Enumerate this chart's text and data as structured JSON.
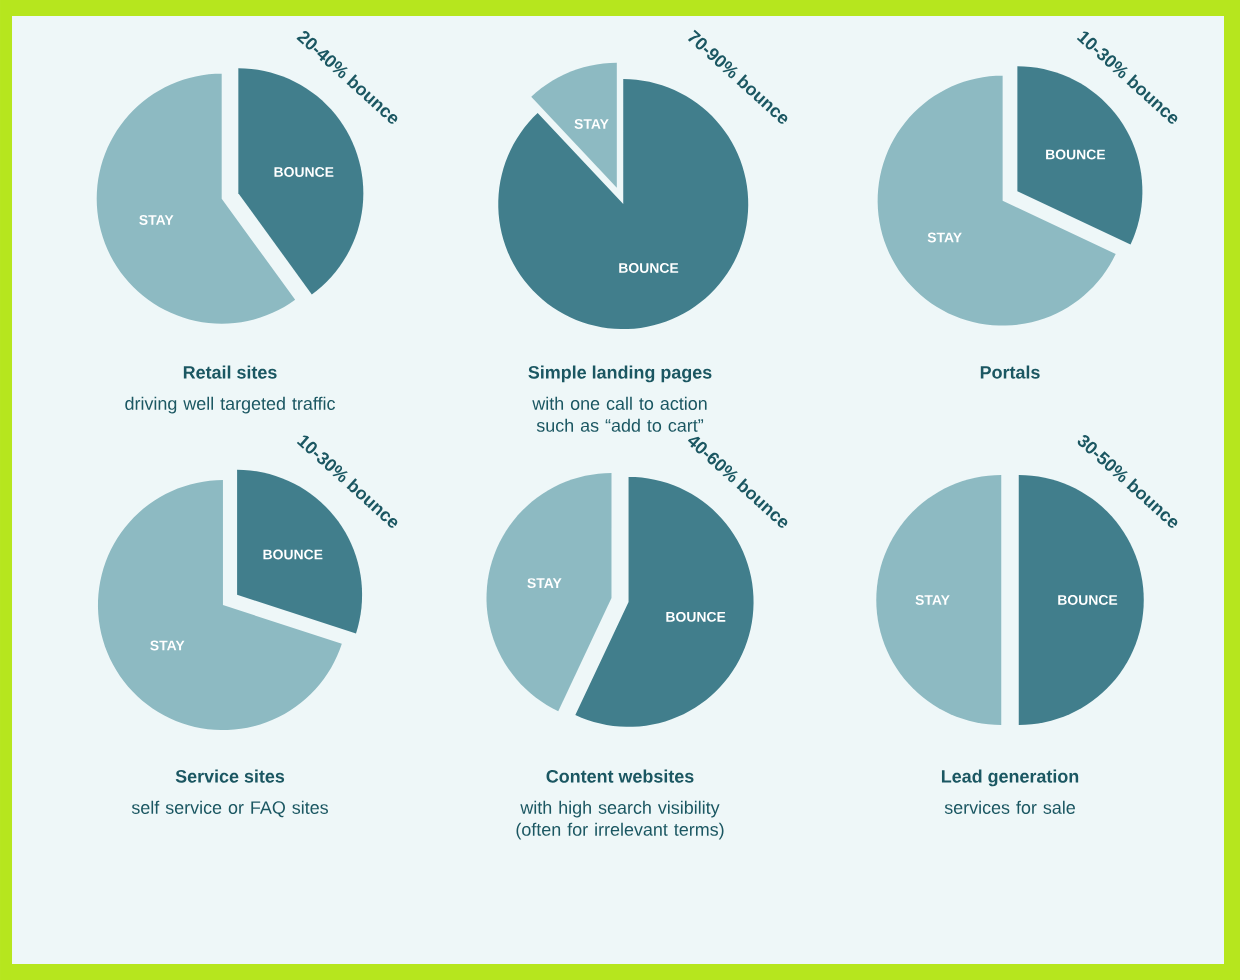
{
  "chart_data": [
    {
      "type": "pie",
      "title": "Retail sites",
      "subtitle": "driving well targeted traffic",
      "categories": [
        "BOUNCE",
        "STAY"
      ],
      "values": [
        40,
        60
      ],
      "colors": [
        "#417e8c",
        "#8dbac2"
      ],
      "annotations": [
        "20-40% bounce"
      ]
    },
    {
      "type": "pie",
      "title": "Simple landing pages",
      "subtitle": "with one call to action such as “add to cart”",
      "categories": [
        "BOUNCE",
        "STAY"
      ],
      "values": [
        88,
        12
      ],
      "colors": [
        "#417e8c",
        "#8dbac2"
      ],
      "annotations": [
        "70-90% bounce"
      ]
    },
    {
      "type": "pie",
      "title": "Portals",
      "categories": [
        "BOUNCE",
        "STAY"
      ],
      "values": [
        32,
        68
      ],
      "colors": [
        "#417e8c",
        "#8dbac2"
      ],
      "annotations": [
        "10-30% bounce"
      ]
    },
    {
      "type": "pie",
      "title": "Service sites",
      "subtitle": "self service or FAQ sites",
      "categories": [
        "BOUNCE",
        "STAY"
      ],
      "values": [
        30,
        70
      ],
      "colors": [
        "#417e8c",
        "#8dbac2"
      ],
      "annotations": [
        "10-30% bounce"
      ]
    },
    {
      "type": "pie",
      "title": "Content websites",
      "subtitle": "with high search visibility (often for irrelevant terms)",
      "categories": [
        "BOUNCE",
        "STAY"
      ],
      "values": [
        57,
        43
      ],
      "colors": [
        "#417e8c",
        "#8dbac2"
      ],
      "annotations": [
        "40-60% bounce"
      ]
    },
    {
      "type": "pie",
      "title": "Lead generation",
      "subtitle": "services for sale",
      "categories": [
        "BOUNCE",
        "STAY"
      ],
      "values": [
        50,
        50
      ],
      "colors": [
        "#417e8c",
        "#8dbac2"
      ],
      "annotations": [
        "30-50% bounce"
      ]
    }
  ]
}
